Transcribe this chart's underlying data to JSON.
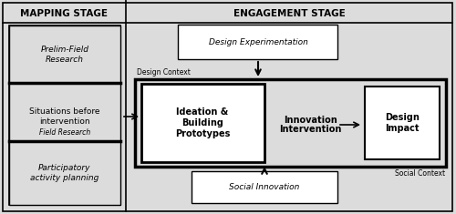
{
  "bg_color": "#e8e8e8",
  "title_mapping": "MAPPING STAGE",
  "title_engagement": "ENGAGEMENT STAGE",
  "prelim_text": "Prelim-Field\nResearch",
  "situations_line1": "Situations before",
  "situations_line2": "intervention",
  "situations_line3": "Field Research",
  "participatory_text": "Participatory\nactivity planning",
  "design_exp_text": "Design Experimentation",
  "ideation_text": "Ideation &\nBuilding\nPrototypes",
  "innovation_text": "Innovation\nIntervention",
  "design_impact_text": "Design\nImpact",
  "social_innovation_text": "Social Innovation",
  "design_context_text": "Design Context",
  "social_context_text": "Social Context"
}
